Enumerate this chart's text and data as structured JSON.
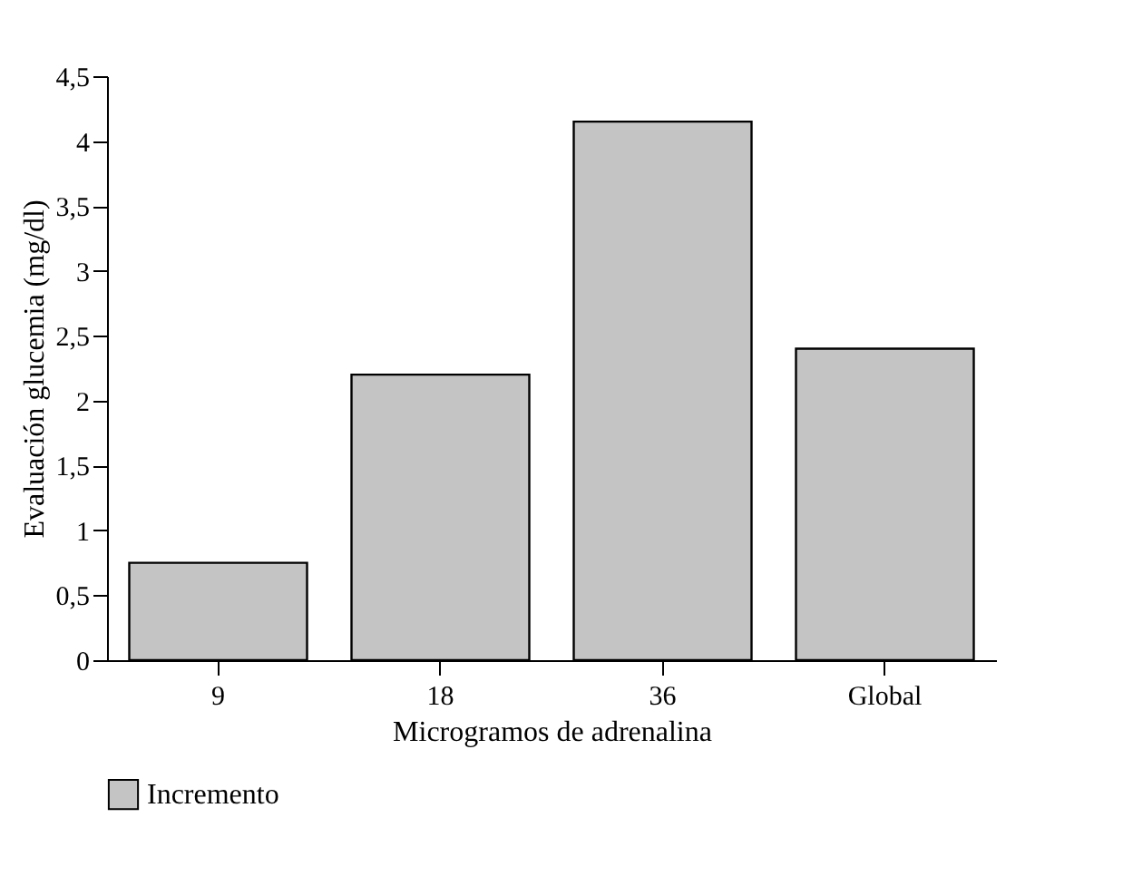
{
  "chart_data": {
    "type": "bar",
    "xlabel": "Microgramos de adrenalina",
    "ylabel": "Evaluación glucemia (mg/dl)",
    "categories": [
      "9",
      "18",
      "36",
      "Global"
    ],
    "series": [
      {
        "name": "Incremento",
        "color": "#c4c4c4",
        "values": [
          0.75,
          2.2,
          4.15,
          2.4
        ]
      }
    ],
    "ylim": [
      0,
      4.5
    ],
    "yticks": [
      0,
      {
        "value": 0.5,
        "label": "0,5"
      },
      1,
      {
        "value": 1.5,
        "label": "1,5"
      },
      2,
      {
        "value": 2.5,
        "label": "2,5"
      },
      3,
      {
        "value": 3.5,
        "label": "3,5"
      },
      4,
      {
        "value": 4.5,
        "label": "4,5"
      }
    ],
    "grid": false,
    "legend": "bottom"
  }
}
